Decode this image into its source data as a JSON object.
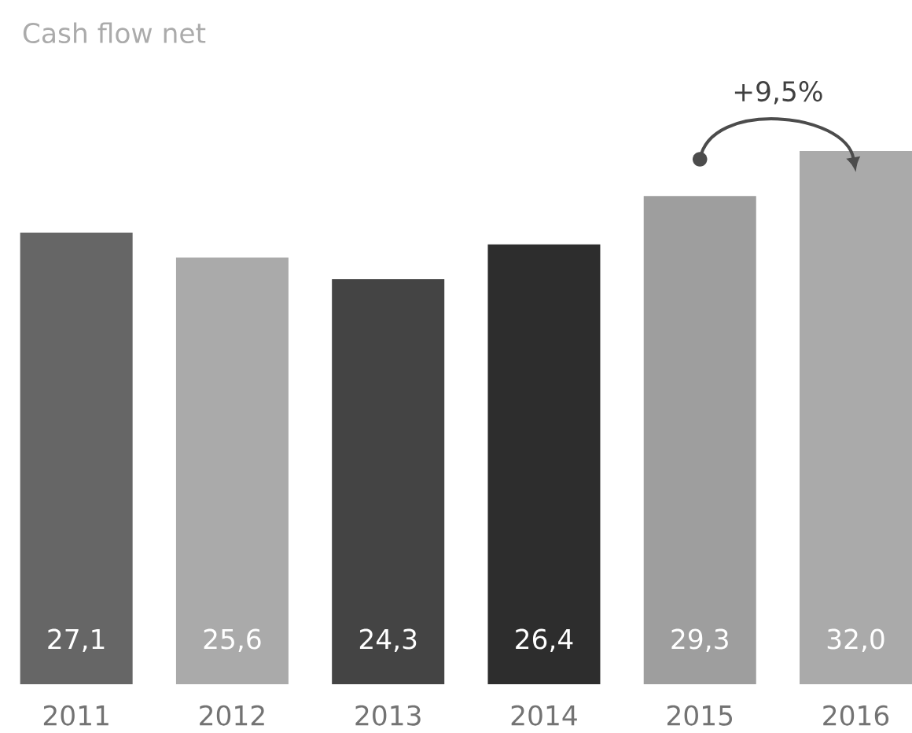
{
  "chart_data": {
    "type": "bar",
    "title": "Cash flow net",
    "categories": [
      "2011",
      "2012",
      "2013",
      "2014",
      "2015",
      "2016"
    ],
    "values": [
      27.1,
      25.6,
      24.3,
      26.4,
      29.3,
      32.0
    ],
    "colors": [
      "#666666",
      "#aaaaaa",
      "#444444",
      "#2d2d2d",
      "#9e9e9e",
      "#aaaaaa"
    ],
    "value_labels": [
      "27,1",
      "25,6",
      "24,3",
      "26,4",
      "29,3",
      "32,0"
    ],
    "annotations": [
      "+9,5%"
    ]
  }
}
